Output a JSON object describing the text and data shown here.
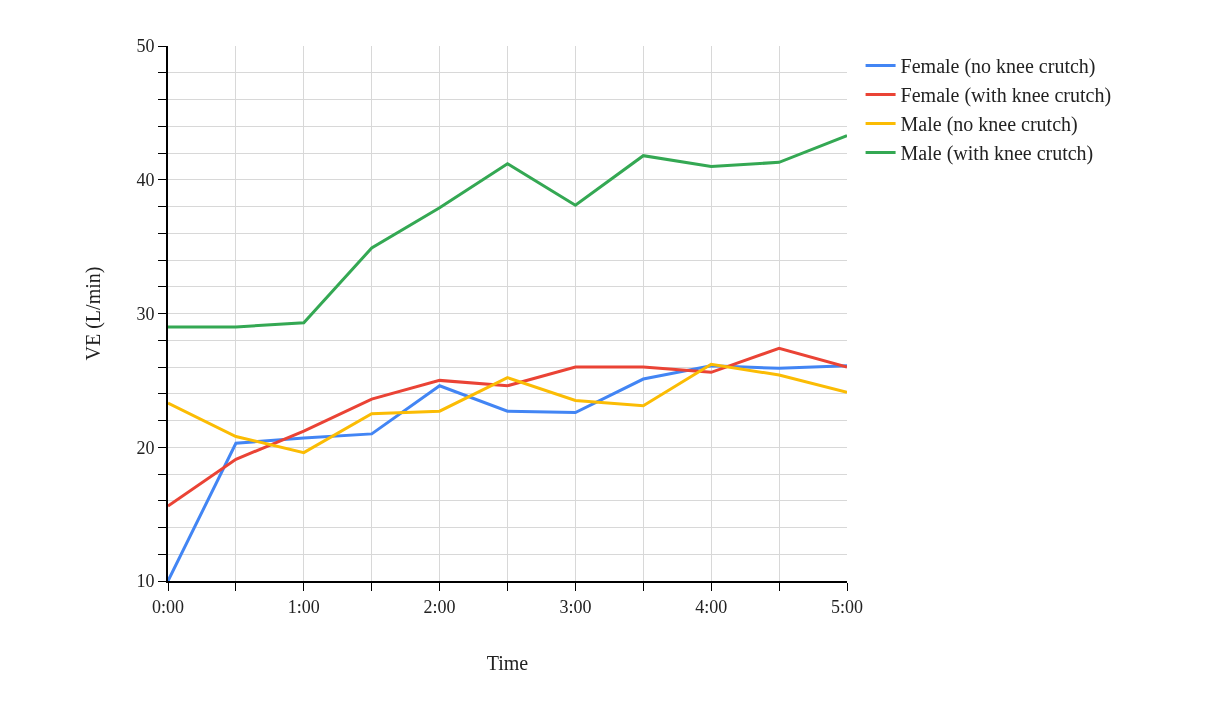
{
  "chart_data": {
    "type": "line",
    "xlabel": "Time",
    "ylabel": "VE (L/min)",
    "x": [
      0,
      0.5,
      1,
      1.5,
      2,
      2.5,
      3,
      3.5,
      4,
      4.5,
      5
    ],
    "series": [
      {
        "name": "Female (no knee crutch)",
        "color": "#4285f4",
        "values": [
          10,
          20.3,
          20.7,
          21.0,
          24.6,
          22.7,
          22.6,
          25.1,
          26.1,
          25.9,
          26.1
        ]
      },
      {
        "name": "Female (with knee crutch)",
        "color": "#ea4335",
        "values": [
          15.6,
          19.1,
          21.2,
          23.6,
          25.0,
          24.6,
          26.0,
          26.0,
          25.6,
          27.4,
          26.0
        ]
      },
      {
        "name": "Male (no knee crutch)",
        "color": "#fbbc04",
        "values": [
          23.3,
          20.8,
          19.6,
          22.5,
          22.7,
          25.2,
          23.5,
          23.1,
          26.2,
          25.4,
          24.1
        ]
      },
      {
        "name": "Male (with knee crutch)",
        "color": "#34a853",
        "values": [
          29.0,
          29.0,
          29.3,
          34.9,
          37.9,
          41.2,
          38.1,
          41.8,
          41.0,
          41.3,
          43.3
        ]
      }
    ],
    "xlim": [
      0,
      5
    ],
    "xticks": [
      {
        "value": 0,
        "label": "0:00"
      },
      {
        "value": 0.5,
        "label": null
      },
      {
        "value": 1,
        "label": "1:00"
      },
      {
        "value": 1.5,
        "label": null
      },
      {
        "value": 2,
        "label": "2:00"
      },
      {
        "value": 2.5,
        "label": null
      },
      {
        "value": 3,
        "label": "3:00"
      },
      {
        "value": 3.5,
        "label": null
      },
      {
        "value": 4,
        "label": "4:00"
      },
      {
        "value": 4.5,
        "label": null
      },
      {
        "value": 5,
        "label": "5:00"
      }
    ],
    "ylim": [
      10,
      50
    ],
    "yticks": [
      10,
      {
        "value": 12,
        "label": null
      },
      {
        "value": 14,
        "label": null
      },
      {
        "value": 16,
        "label": null
      },
      {
        "value": 18,
        "label": null
      },
      20,
      {
        "value": 22,
        "label": null
      },
      {
        "value": 24,
        "label": null
      },
      {
        "value": 26,
        "label": null
      },
      {
        "value": 28,
        "label": null
      },
      30,
      {
        "value": 32,
        "label": null
      },
      {
        "value": 34,
        "label": null
      },
      {
        "value": 36,
        "label": null
      },
      {
        "value": 38,
        "label": null
      },
      40,
      {
        "value": 42,
        "label": null
      },
      {
        "value": 44,
        "label": null
      },
      {
        "value": 46,
        "label": null
      },
      {
        "value": 48,
        "label": null
      },
      50
    ],
    "grid": true,
    "legend": "top right",
    "marker": "none",
    "line_style": "solid"
  }
}
